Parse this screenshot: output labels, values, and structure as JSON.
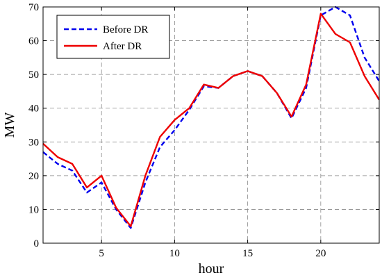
{
  "chart_data": {
    "type": "line",
    "xlabel": "hour",
    "ylabel": "MW",
    "xlim": [
      1,
      24
    ],
    "ylim": [
      0,
      70
    ],
    "xticks": [
      5,
      10,
      15,
      20
    ],
    "yticks": [
      0,
      10,
      20,
      30,
      40,
      50,
      60,
      70
    ],
    "grid": true,
    "legend_position": "top-left",
    "x": [
      1,
      2,
      3,
      4,
      5,
      6,
      7,
      8,
      9,
      10,
      11,
      12,
      13,
      14,
      15,
      16,
      17,
      18,
      19,
      20,
      21,
      22,
      23,
      24
    ],
    "series": [
      {
        "name": "Before DR",
        "color": "#0000ee",
        "style": "dashed",
        "values": [
          27,
          23.5,
          21.5,
          15,
          18,
          10,
          4.5,
          18,
          28.5,
          33.5,
          39.5,
          46.5,
          46,
          49.5,
          51,
          49.5,
          44.5,
          37,
          46,
          67.5,
          70,
          67.5,
          55,
          48
        ]
      },
      {
        "name": "After DR",
        "color": "#ee0000",
        "style": "solid",
        "values": [
          29.5,
          25.5,
          23.5,
          16.5,
          20,
          10.5,
          5,
          20,
          31.5,
          36.5,
          40,
          47,
          46,
          49.5,
          51,
          49.5,
          44.5,
          37.5,
          47,
          68,
          62,
          59.5,
          49.5,
          42.5
        ]
      }
    ]
  }
}
